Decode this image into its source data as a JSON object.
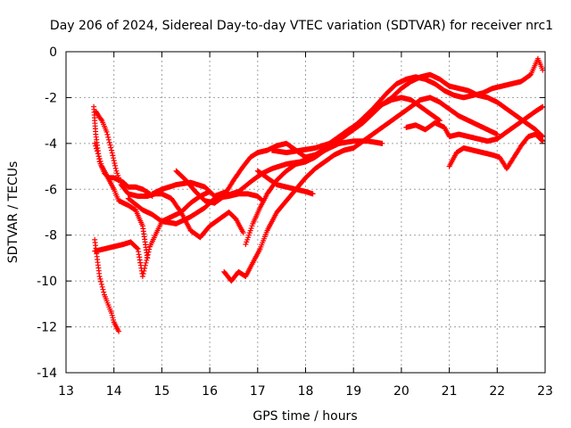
{
  "chart_data": {
    "type": "scatter",
    "title": "Day 206 of 2024, Sidereal Day-to-day VTEC variation (SDTVAR) for receiver nrc1",
    "xlabel": "GPS time / hours",
    "ylabel": "SDTVAR / TECUs",
    "xlim": [
      13,
      23
    ],
    "ylim": [
      -14,
      0
    ],
    "xticks": [
      "13",
      "14",
      "15",
      "16",
      "17",
      "18",
      "19",
      "20",
      "21",
      "22",
      "23"
    ],
    "yticks": [
      "0",
      "-2",
      "-4",
      "-6",
      "-8",
      "-10",
      "-12",
      "-14"
    ],
    "grid": true,
    "marker": "plus",
    "color": "#ff0000",
    "series": [
      {
        "name": "s1",
        "x": [
          13.6,
          13.7,
          13.8,
          13.95,
          14.0,
          14.1
        ],
        "y": [
          -8.2,
          -9.8,
          -10.6,
          -11.4,
          -11.8,
          -12.2
        ]
      },
      {
        "name": "s2",
        "x": [
          13.58,
          13.62,
          13.7,
          13.8,
          13.9,
          14.0,
          14.2,
          14.3,
          14.45,
          14.6,
          14.75,
          14.8
        ],
        "y": [
          -2.4,
          -3.6,
          -4.8,
          -5.3,
          -5.5,
          -5.5,
          -5.7,
          -5.9,
          -5.9,
          -6.0,
          -6.2,
          -6.3
        ]
      },
      {
        "name": "s3",
        "x": [
          13.6,
          13.75,
          13.9,
          14.0,
          14.1,
          14.3,
          14.45,
          14.6,
          14.7
        ],
        "y": [
          -4.0,
          -5.0,
          -5.6,
          -6.0,
          -6.5,
          -6.7,
          -6.9,
          -7.6,
          -9.0
        ]
      },
      {
        "name": "s4",
        "x": [
          13.62,
          13.68,
          13.75,
          13.85,
          13.95,
          14.05,
          14.15,
          14.3,
          14.5,
          14.7,
          14.85,
          15.0,
          15.2,
          15.4,
          15.6,
          15.8,
          16.0,
          16.2,
          16.4,
          16.55,
          16.7
        ],
        "y": [
          -2.6,
          -2.8,
          -3.0,
          -3.5,
          -4.3,
          -5.2,
          -5.8,
          -6.2,
          -6.3,
          -6.3,
          -6.2,
          -6.2,
          -6.4,
          -7.0,
          -7.8,
          -8.1,
          -7.6,
          -7.3,
          -7.0,
          -7.3,
          -7.9
        ]
      },
      {
        "name": "s5",
        "x": [
          13.6,
          13.8,
          14.0,
          14.2,
          14.35,
          14.5,
          14.6,
          14.75,
          15.0,
          15.2,
          15.4,
          15.6,
          15.8,
          16.0
        ],
        "y": [
          -8.7,
          -8.6,
          -8.5,
          -8.4,
          -8.3,
          -8.6,
          -9.8,
          -8.5,
          -7.4,
          -7.2,
          -7.0,
          -6.6,
          -6.3,
          -6.1
        ]
      },
      {
        "name": "s6",
        "x": [
          14.3,
          14.6,
          14.8,
          15.0,
          15.3,
          15.6,
          15.9,
          16.1,
          16.4,
          16.6,
          16.8,
          17.0,
          17.1
        ],
        "y": [
          -6.4,
          -6.9,
          -7.1,
          -7.4,
          -7.5,
          -7.2,
          -6.8,
          -6.4,
          -6.3,
          -6.2,
          -6.2,
          -6.3,
          -6.5
        ]
      },
      {
        "name": "s7",
        "x": [
          14.8,
          15.0,
          15.3,
          15.6,
          15.9,
          16.1,
          16.35,
          16.5,
          16.7,
          16.85,
          17.0,
          17.2,
          17.4,
          17.6,
          17.8,
          18.0,
          18.2,
          18.35,
          18.5,
          18.7,
          18.9,
          19.2,
          19.4,
          19.6,
          19.8,
          20.0,
          20.2,
          20.4,
          20.6,
          20.8
        ],
        "y": [
          -6.2,
          -6.0,
          -5.8,
          -5.7,
          -5.9,
          -6.3,
          -6.1,
          -5.6,
          -5.0,
          -4.6,
          -4.4,
          -4.3,
          -4.1,
          -4.0,
          -4.3,
          -4.6,
          -4.5,
          -4.3,
          -4.0,
          -3.7,
          -3.4,
          -3.0,
          -2.6,
          -2.3,
          -2.1,
          -2.0,
          -2.1,
          -2.4,
          -2.7,
          -3.0
        ]
      },
      {
        "name": "s8",
        "x": [
          15.3,
          15.5,
          15.7,
          15.9,
          16.1,
          16.3,
          16.6,
          16.9,
          17.1,
          17.3,
          17.6,
          17.9,
          18.1,
          18.4,
          18.7,
          19.0,
          19.3,
          19.6
        ],
        "y": [
          -5.2,
          -5.6,
          -6.1,
          -6.5,
          -6.6,
          -6.3,
          -6.1,
          -5.6,
          -5.3,
          -5.1,
          -4.9,
          -4.8,
          -4.6,
          -4.3,
          -4.0,
          -3.9,
          -3.9,
          -4.0
        ]
      },
      {
        "name": "s9",
        "x": [
          16.3,
          16.45,
          16.6,
          16.75,
          16.9,
          17.05,
          17.2,
          17.4,
          17.6,
          17.8,
          18.0,
          18.2,
          18.4,
          18.6,
          18.8,
          19.0,
          19.2,
          19.4,
          19.6,
          19.8,
          20.0,
          20.2,
          20.4,
          20.6,
          20.8,
          21.0,
          21.2,
          21.4,
          21.6,
          21.8,
          22.0
        ],
        "y": [
          -9.6,
          -10.0,
          -9.6,
          -9.8,
          -9.2,
          -8.6,
          -7.8,
          -7.0,
          -6.5,
          -6.0,
          -5.5,
          -5.1,
          -4.8,
          -4.5,
          -4.3,
          -4.2,
          -3.9,
          -3.6,
          -3.3,
          -3.0,
          -2.7,
          -2.4,
          -2.1,
          -2.0,
          -2.2,
          -2.5,
          -2.8,
          -3.0,
          -3.2,
          -3.4,
          -3.6
        ]
      },
      {
        "name": "s10",
        "x": [
          16.75,
          16.9,
          17.05,
          17.2,
          17.4,
          17.6,
          17.8,
          18.0,
          18.2,
          18.4,
          18.6,
          18.8,
          19.0,
          19.2,
          19.4,
          19.6,
          19.8,
          20.0,
          20.2,
          20.4,
          20.6,
          20.8,
          21.0,
          21.2,
          21.4,
          21.6,
          21.8,
          22.0,
          22.2,
          22.4,
          22.6,
          22.8,
          22.95
        ],
        "y": [
          -8.4,
          -7.5,
          -6.8,
          -6.2,
          -5.6,
          -5.2,
          -4.9,
          -4.8,
          -4.6,
          -4.3,
          -4.0,
          -3.7,
          -3.4,
          -3.1,
          -2.7,
          -2.3,
          -2.0,
          -1.6,
          -1.3,
          -1.1,
          -1.0,
          -1.2,
          -1.5,
          -1.6,
          -1.7,
          -1.9,
          -2.0,
          -2.2,
          -2.5,
          -2.8,
          -3.1,
          -3.4,
          -3.7
        ]
      },
      {
        "name": "s11",
        "x": [
          17.3,
          17.6,
          17.9,
          18.2,
          18.5,
          18.8,
          19.1,
          19.4,
          19.7,
          19.9,
          20.1,
          20.3,
          20.5,
          20.7,
          20.9,
          21.1,
          21.3,
          21.5,
          21.7,
          21.9,
          22.1,
          22.3,
          22.5,
          22.7,
          22.85,
          22.95
        ],
        "y": [
          -4.3,
          -4.4,
          -4.3,
          -4.2,
          -4.0,
          -3.6,
          -3.1,
          -2.5,
          -1.8,
          -1.4,
          -1.2,
          -1.1,
          -1.2,
          -1.4,
          -1.7,
          -1.9,
          -2.0,
          -1.9,
          -1.8,
          -1.6,
          -1.5,
          -1.4,
          -1.3,
          -1.0,
          -0.3,
          -0.8
        ]
      },
      {
        "name": "s12",
        "x": [
          17.0,
          17.2,
          17.4,
          17.6,
          17.8,
          18.0,
          18.15
        ],
        "y": [
          -5.2,
          -5.5,
          -5.8,
          -5.9,
          -6.0,
          -6.1,
          -6.2
        ]
      },
      {
        "name": "s13",
        "x": [
          20.1,
          20.3,
          20.5,
          20.7,
          20.9,
          21.0,
          21.2,
          21.4,
          21.6,
          21.8,
          22.0,
          22.2,
          22.4,
          22.6,
          22.8,
          22.95
        ],
        "y": [
          -3.3,
          -3.2,
          -3.4,
          -3.1,
          -3.3,
          -3.7,
          -3.6,
          -3.7,
          -3.8,
          -3.9,
          -3.8,
          -3.5,
          -3.2,
          -2.9,
          -2.6,
          -2.4
        ]
      },
      {
        "name": "s14",
        "x": [
          21.0,
          21.15,
          21.3,
          21.5,
          21.7,
          21.9,
          22.05,
          22.2,
          22.35,
          22.5,
          22.65,
          22.8,
          22.95
        ],
        "y": [
          -5.0,
          -4.4,
          -4.2,
          -4.3,
          -4.4,
          -4.5,
          -4.6,
          -5.1,
          -4.6,
          -4.1,
          -3.7,
          -3.6,
          -3.9
        ]
      }
    ]
  }
}
